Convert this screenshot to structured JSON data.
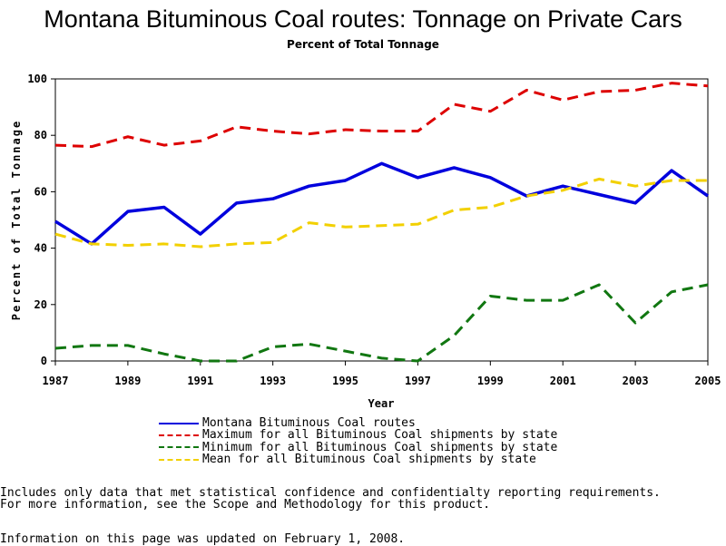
{
  "chart_data": {
    "type": "line",
    "title": "Montana Bituminous Coal routes: Tonnage on Private Cars",
    "subtitle": "Percent of Total Tonnage",
    "xlabel": "Year",
    "ylabel": "Percent of Total Tonnage",
    "x": [
      1987,
      1988,
      1989,
      1990,
      1991,
      1992,
      1993,
      1994,
      1995,
      1996,
      1997,
      1998,
      1999,
      2000,
      2001,
      2002,
      2003,
      2004,
      2005
    ],
    "x_ticks": [
      "1987",
      "1989",
      "1991",
      "1993",
      "1995",
      "1997",
      "1999",
      "2001",
      "2003",
      "2005"
    ],
    "y_ticks": [
      "0",
      "20",
      "40",
      "60",
      "80",
      "100"
    ],
    "xlim": [
      1987,
      2005
    ],
    "ylim": [
      0,
      100
    ],
    "grid": false,
    "legend_position": "bottom",
    "series": [
      {
        "name": "Montana Bituminous Coal routes",
        "color": "#0000dd",
        "style": "solid",
        "values": [
          49.5,
          41.5,
          53,
          54.5,
          45,
          56,
          57.5,
          62,
          64,
          70,
          65,
          68.5,
          65,
          58.5,
          62,
          59,
          56,
          67.5,
          58.5
        ]
      },
      {
        "name": "Maximum for all Bituminous Coal shipments by state",
        "color": "#dd0000",
        "style": "dashed",
        "values": [
          76.5,
          76,
          79.5,
          76.5,
          78,
          83,
          81.5,
          80.5,
          82,
          81.5,
          81.5,
          91,
          88.5,
          96,
          92.5,
          95.5,
          96,
          98.5,
          97.5
        ]
      },
      {
        "name": "Minimum for all Bituminous Coal shipments by state",
        "color": "#117711",
        "style": "dashed",
        "values": [
          4.5,
          5.5,
          5.5,
          2.5,
          0,
          0,
          5,
          6,
          3.5,
          1,
          0,
          9,
          23,
          21.5,
          21.5,
          27,
          13.5,
          24.5,
          27
        ]
      },
      {
        "name": "Mean for all Bituminous Coal shipments by state",
        "color": "#f2d000",
        "style": "dashed",
        "values": [
          45,
          41.5,
          41,
          41.5,
          40.5,
          41.5,
          42,
          49,
          47.5,
          48,
          48.5,
          53.5,
          54.5,
          58.5,
          60.5,
          64.5,
          62,
          64,
          64
        ]
      }
    ]
  },
  "notes": {
    "line1": "Includes only data that met statistical confidence and confidentialty reporting requirements.",
    "line2": "For more information, see the Scope and Methodology for this product.",
    "updated": "Information on this page was updated on February 1, 2008."
  }
}
